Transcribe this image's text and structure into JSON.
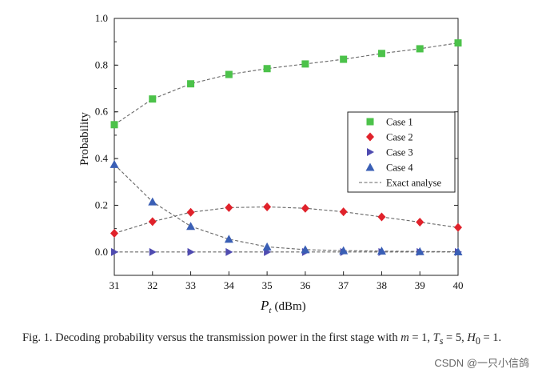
{
  "chart_data": {
    "type": "line",
    "xlabel_main": "P",
    "xlabel_sub": "t",
    "xlabel_unit": "(dBm)",
    "ylabel": "Probability",
    "xlim": [
      31,
      40
    ],
    "ylim": [
      -0.1,
      1.0
    ],
    "x_ticks": [
      31,
      32,
      33,
      34,
      35,
      36,
      37,
      38,
      39,
      40
    ],
    "y_ticks": [
      0.0,
      0.2,
      0.4,
      0.6,
      0.8,
      1.0
    ],
    "y_tick_labels": [
      "0.0",
      "0.2",
      "0.4",
      "0.6",
      "0.8",
      "1.0"
    ],
    "x": [
      31,
      32,
      33,
      34,
      35,
      36,
      37,
      38,
      39,
      40
    ],
    "series": [
      {
        "name": "Case 1",
        "marker": "square",
        "color": "#4cc24a",
        "values": [
          0.545,
          0.655,
          0.72,
          0.76,
          0.785,
          0.805,
          0.825,
          0.85,
          0.87,
          0.895
        ]
      },
      {
        "name": "Case 2",
        "marker": "diamond",
        "color": "#e0222b",
        "values": [
          0.08,
          0.13,
          0.17,
          0.19,
          0.193,
          0.187,
          0.172,
          0.15,
          0.128,
          0.105
        ]
      },
      {
        "name": "Case 3",
        "marker": "triangle-right",
        "color": "#4f4bb0",
        "values": [
          0.0,
          0.0,
          0.0,
          0.0,
          0.0,
          0.0,
          0.0,
          0.0,
          0.0,
          0.0
        ]
      },
      {
        "name": "Case 4",
        "marker": "triangle-up",
        "color": "#3a5fb5",
        "values": [
          0.375,
          0.215,
          0.11,
          0.055,
          0.022,
          0.01,
          0.006,
          0.004,
          0.002,
          0.001
        ]
      }
    ],
    "exact": {
      "name": "Exact analyse",
      "color": "#666666",
      "values_by_series": [
        [
          0.545,
          0.655,
          0.72,
          0.76,
          0.785,
          0.805,
          0.825,
          0.85,
          0.87,
          0.895
        ],
        [
          0.08,
          0.13,
          0.17,
          0.19,
          0.193,
          0.187,
          0.172,
          0.15,
          0.128,
          0.105
        ],
        [
          0.0,
          0.0,
          0.0,
          0.0,
          0.0,
          0.0,
          0.0,
          0.0,
          0.0,
          0.0
        ],
        [
          0.375,
          0.215,
          0.11,
          0.055,
          0.022,
          0.01,
          0.006,
          0.004,
          0.002,
          0.001
        ]
      ]
    },
    "legend": [
      "Case 1",
      "Case 2",
      "Case 3",
      "Case 4",
      "Exact analyse"
    ],
    "legend_position": "center-right",
    "grid": false
  },
  "caption": "Fig. 1. Decoding probability versus the transmission power in the first stage with m = 1, T",
  "caption_parts": {
    "lead": "Fig. 1. Decoding probability versus the transmission power in the first stage with ",
    "m": "m",
    "eq1": " = ",
    "one_a": "1",
    "comma1": ", ",
    "T": "T",
    "T_sub": "s",
    "eq2": " = 5, ",
    "H": "H",
    "H_sub": "0",
    "eq3": " = 1."
  },
  "watermark": "CSDN @一只小信鸽"
}
